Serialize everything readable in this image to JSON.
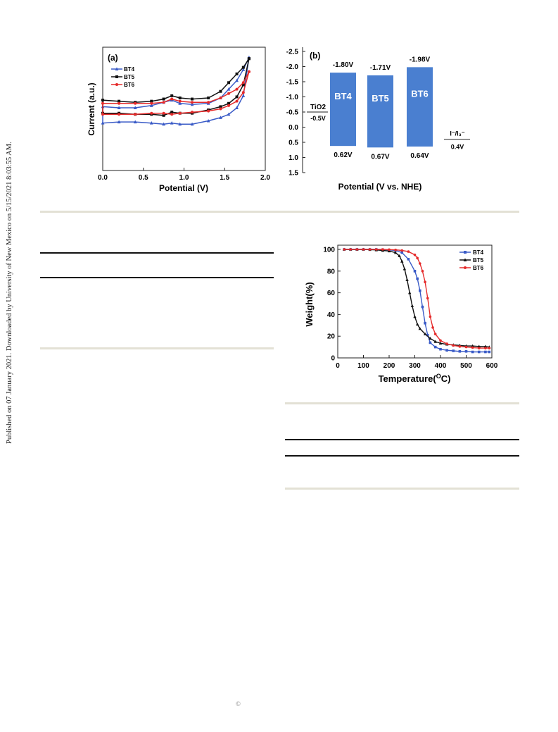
{
  "side_note": "Published on 07 January 2021. Downloaded by University of New Mexico on 5/15/2021 8:03:55 AM.",
  "copyright_symbol": "©",
  "colors": {
    "bt4": "#3a5bc7",
    "bt5": "#111111",
    "bt6": "#e52b2b",
    "bar": "#4a7fd0",
    "rule": "#e3e1d5"
  },
  "chart_data": [
    {
      "type": "line",
      "panel_label": "(a)",
      "xlabel": "Potential (V)",
      "ylabel": "Current (a.u.)",
      "xlim": [
        0.0,
        2.0
      ],
      "x_ticks": [
        "0.0",
        "0.5",
        "1.0",
        "1.5",
        "2.0"
      ],
      "y_ticks_shown": false,
      "legend": [
        "BT4",
        "BT5",
        "BT6"
      ],
      "legend_position": "top-left",
      "ylim": [
        0,
        100
      ],
      "series": [
        {
          "name": "BT4",
          "marker": "triangle",
          "upper": [
            [
              0,
              52
            ],
            [
              0.2,
              51
            ],
            [
              0.4,
              51
            ],
            [
              0.6,
              53
            ],
            [
              0.75,
              56
            ],
            [
              0.85,
              58
            ],
            [
              0.95,
              55
            ],
            [
              1.1,
              54
            ],
            [
              1.3,
              55
            ],
            [
              1.45,
              60
            ],
            [
              1.55,
              68
            ],
            [
              1.65,
              76
            ],
            [
              1.73,
              86
            ],
            [
              1.8,
              97
            ]
          ],
          "lower": [
            [
              0,
              37
            ],
            [
              0.2,
              38
            ],
            [
              0.4,
              38
            ],
            [
              0.6,
              37
            ],
            [
              0.75,
              36
            ],
            [
              0.85,
              37
            ],
            [
              0.95,
              36
            ],
            [
              1.1,
              36
            ],
            [
              1.3,
              39
            ],
            [
              1.45,
              42
            ],
            [
              1.55,
              45
            ],
            [
              1.65,
              51
            ],
            [
              1.73,
              62
            ],
            [
              1.8,
              97
            ]
          ]
        },
        {
          "name": "BT5",
          "marker": "square",
          "upper": [
            [
              0,
              58
            ],
            [
              0.2,
              57
            ],
            [
              0.4,
              56
            ],
            [
              0.6,
              57
            ],
            [
              0.75,
              59
            ],
            [
              0.85,
              62
            ],
            [
              0.95,
              60
            ],
            [
              1.1,
              59
            ],
            [
              1.3,
              60
            ],
            [
              1.45,
              66
            ],
            [
              1.55,
              74
            ],
            [
              1.65,
              82
            ],
            [
              1.73,
              88
            ],
            [
              1.8,
              96
            ]
          ],
          "lower": [
            [
              0,
              46
            ],
            [
              0.2,
              46
            ],
            [
              0.4,
              45
            ],
            [
              0.6,
              45
            ],
            [
              0.75,
              44
            ],
            [
              0.85,
              47
            ],
            [
              0.95,
              46
            ],
            [
              1.1,
              46
            ],
            [
              1.3,
              49
            ],
            [
              1.45,
              52
            ],
            [
              1.55,
              55
            ],
            [
              1.65,
              61
            ],
            [
              1.73,
              72
            ],
            [
              1.8,
              96
            ]
          ]
        },
        {
          "name": "BT6",
          "marker": "circle",
          "upper": [
            [
              0,
              55
            ],
            [
              0.2,
              55
            ],
            [
              0.4,
              55
            ],
            [
              0.6,
              55
            ],
            [
              0.75,
              56
            ],
            [
              0.85,
              59
            ],
            [
              0.95,
              57
            ],
            [
              1.1,
              56
            ],
            [
              1.3,
              56
            ],
            [
              1.45,
              60
            ],
            [
              1.55,
              64
            ],
            [
              1.65,
              68
            ],
            [
              1.73,
              74
            ],
            [
              1.8,
              84
            ]
          ],
          "lower": [
            [
              0,
              45
            ],
            [
              0.2,
              45
            ],
            [
              0.4,
              45
            ],
            [
              0.6,
              46
            ],
            [
              0.75,
              46
            ],
            [
              0.85,
              45
            ],
            [
              0.95,
              46
            ],
            [
              1.1,
              47
            ],
            [
              1.3,
              48
            ],
            [
              1.45,
              50
            ],
            [
              1.55,
              53
            ],
            [
              1.65,
              57
            ],
            [
              1.73,
              65
            ],
            [
              1.8,
              84
            ]
          ]
        }
      ]
    },
    {
      "type": "bar",
      "panel_label": "(b)",
      "xlabel": "Potential (V vs. NHE)",
      "ylim": [
        -2.5,
        1.5
      ],
      "y_ticks": [
        "-2.5",
        "-2.0",
        "-1.5",
        "-1.0",
        "-0.5",
        "0.0",
        "0.5",
        "1.0",
        "1.5"
      ],
      "categories": [
        "BT4",
        "BT5",
        "BT6"
      ],
      "lumo": [
        -1.8,
        -1.71,
        -1.98
      ],
      "homo": [
        0.62,
        0.67,
        0.64
      ],
      "lumo_labels": [
        "-1.80V",
        "-1.71V",
        "-1.98V"
      ],
      "homo_labels": [
        "0.62V",
        "0.67V",
        "0.64V"
      ],
      "references": [
        {
          "label": "TiO2",
          "value": -0.5,
          "value_label": "-0.5V"
        },
        {
          "label": "I⁻/I₃⁻",
          "value": 0.4,
          "value_label": "0.4V"
        }
      ]
    },
    {
      "type": "line",
      "xlabel": "Temperature(OC)",
      "xlabel_main": "Temperature(",
      "xlabel_sup": "O",
      "xlabel_end": "C)",
      "ylabel": "Weight(%)",
      "xlim": [
        0,
        600
      ],
      "ylim": [
        0,
        100
      ],
      "x_ticks": [
        "0",
        "100",
        "200",
        "300",
        "400",
        "500",
        "600"
      ],
      "y_ticks": [
        "0",
        "20",
        "40",
        "60",
        "80",
        "100"
      ],
      "legend": [
        "BT4",
        "BT5",
        "BT6"
      ],
      "legend_position": "top-right",
      "series": [
        {
          "name": "BT4",
          "marker": "square",
          "x": [
            25,
            50,
            75,
            100,
            125,
            150,
            175,
            200,
            225,
            250,
            275,
            300,
            310,
            320,
            330,
            340,
            350,
            360,
            380,
            400,
            425,
            450,
            475,
            500,
            525,
            550,
            575,
            590
          ],
          "y": [
            100,
            100,
            100,
            100,
            100,
            100,
            99.8,
            99.5,
            99,
            97,
            91,
            80,
            73,
            62,
            47,
            32,
            21,
            14,
            10,
            8,
            7,
            6.5,
            6,
            6,
            5.5,
            5.5,
            5.5,
            5.5
          ]
        },
        {
          "name": "BT5",
          "marker": "triangle",
          "x": [
            25,
            50,
            75,
            100,
            125,
            150,
            175,
            200,
            225,
            240,
            250,
            260,
            270,
            280,
            290,
            300,
            310,
            320,
            340,
            360,
            380,
            400,
            425,
            450,
            475,
            500,
            525,
            550,
            575,
            590
          ],
          "y": [
            100,
            100,
            100,
            100,
            99.8,
            99.5,
            99,
            98.5,
            97,
            94,
            89,
            82,
            72,
            60,
            48,
            38,
            31,
            27,
            22,
            18,
            15,
            13.5,
            12.5,
            12,
            11.5,
            11,
            11,
            10.5,
            10.5,
            10
          ]
        },
        {
          "name": "BT6",
          "marker": "circle",
          "x": [
            25,
            50,
            75,
            100,
            125,
            150,
            175,
            200,
            225,
            250,
            275,
            300,
            310,
            320,
            330,
            340,
            350,
            360,
            370,
            380,
            400,
            425,
            450,
            475,
            500,
            525,
            550,
            575,
            590
          ],
          "y": [
            100,
            100,
            100,
            100,
            100,
            100,
            100,
            99.8,
            99.6,
            99,
            98,
            95,
            92,
            87,
            80,
            70,
            55,
            38,
            28,
            22,
            16,
            13,
            11.5,
            10.5,
            10,
            9.5,
            9,
            9,
            9
          ]
        }
      ]
    }
  ],
  "table_rules": "horizontal rules only"
}
